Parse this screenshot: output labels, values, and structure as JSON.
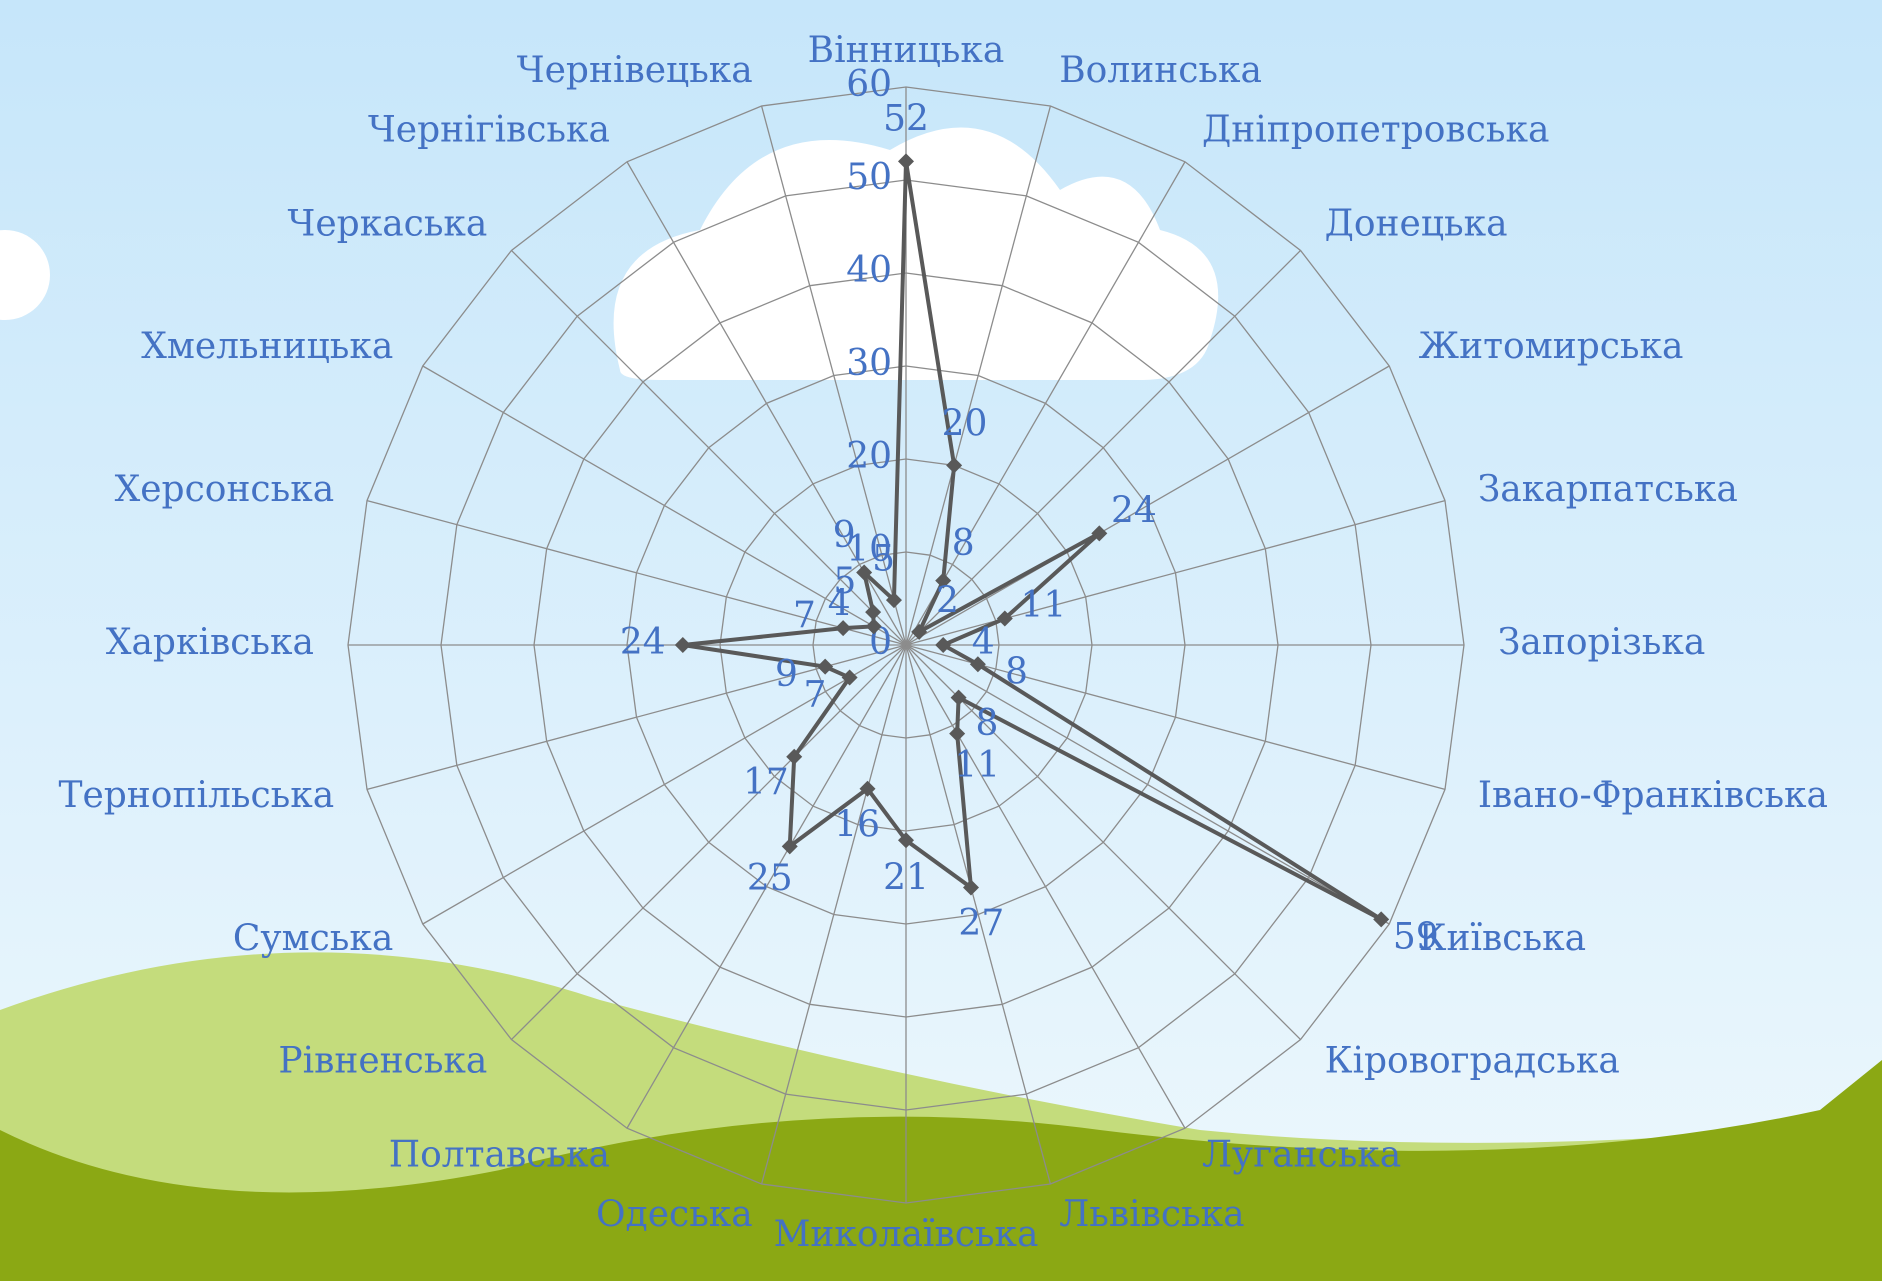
{
  "chart_data": {
    "type": "radar",
    "categories": [
      "Вінницька",
      "Волинська",
      "Дніпропетровська",
      "Донецька",
      "Житомирська",
      "Закарпатська",
      "Запорізька",
      "Івано-Франківська",
      "Київська",
      "Кіровоградська",
      "Луганська",
      "Львівська",
      "Миколаївська",
      "Одеська",
      "Полтавська",
      "Рівненська",
      "Сумська",
      "Тернопільська",
      "Харківська",
      "Херсонська",
      "Хмельницька",
      "Черкаська",
      "Чернігівська",
      "Чернівецька"
    ],
    "values": [
      52,
      20,
      8,
      2,
      24,
      11,
      4,
      8,
      59,
      8,
      11,
      27,
      21,
      16,
      25,
      17,
      7,
      9,
      24,
      7,
      4,
      5,
      9,
      5
    ],
    "color": "#595959",
    "ylim": [
      0,
      60
    ],
    "yticks": [
      0,
      10,
      20,
      30,
      40,
      50,
      60
    ],
    "grid": true
  }
}
